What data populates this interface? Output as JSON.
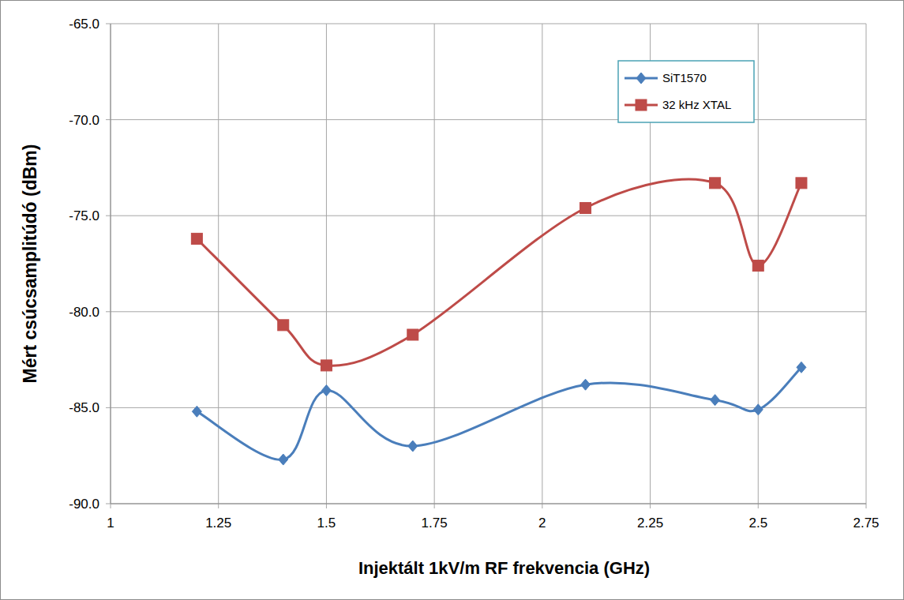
{
  "chart_data": {
    "type": "line",
    "x_label": "Injektált 1kV/m RF frekvencia (GHz)",
    "y_label": "Mért csúcsamplitúdó (dBm)",
    "x": [
      1.2,
      1.4,
      1.5,
      1.7,
      2.1,
      2.4,
      2.5,
      2.6
    ],
    "series": [
      {
        "name": "SiT1570",
        "color": "#4a7ebb",
        "marker": "diamond",
        "line_style": "smooth",
        "values": [
          -85.2,
          -87.7,
          -84.1,
          -87.0,
          -83.8,
          -84.6,
          -85.1,
          -82.9
        ]
      },
      {
        "name": "32 kHz XTAL",
        "color": "#be4b48",
        "marker": "square",
        "line_style": "smooth",
        "values": [
          -76.2,
          -80.7,
          -82.8,
          -81.2,
          -74.6,
          -73.3,
          -77.6,
          -73.3
        ]
      }
    ],
    "xlim": [
      1,
      2.75
    ],
    "xticks": [
      1,
      1.25,
      1.5,
      1.75,
      2,
      2.25,
      2.5,
      2.75
    ],
    "ylim": [
      -90,
      -65
    ],
    "yticks": [
      {
        "value": -90,
        "label": "-90.0"
      },
      {
        "value": -85,
        "label": "-85.0"
      },
      {
        "value": -80,
        "label": "-80.0"
      },
      {
        "value": -75,
        "label": "-75.0"
      },
      {
        "value": -70,
        "label": "-70.0"
      },
      {
        "value": -65,
        "label": "-65.0"
      }
    ],
    "grid": true,
    "legend": "top-right"
  }
}
